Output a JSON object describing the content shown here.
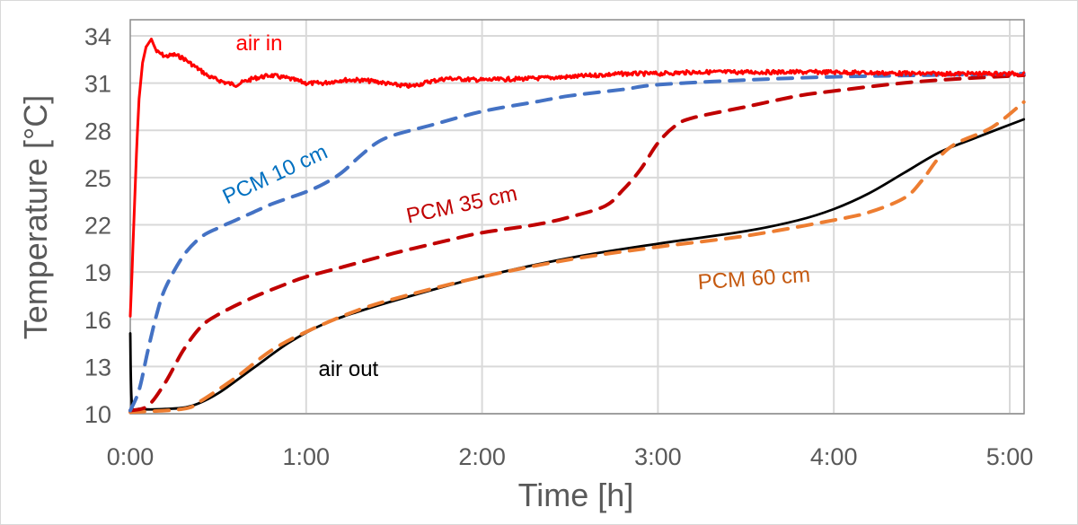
{
  "chart_data": {
    "type": "line",
    "title": "",
    "xlabel": "Time [h]",
    "ylabel": "Temperature [°C]",
    "xlim": [
      0,
      5.08
    ],
    "ylim": [
      10,
      35
    ],
    "grid": true,
    "legend": "none (inline series labels)",
    "x_ticks": [
      {
        "value": 0,
        "label": "0:00"
      },
      {
        "value": 1,
        "label": "1:00"
      },
      {
        "value": 2,
        "label": "2:00"
      },
      {
        "value": 3,
        "label": "3:00"
      },
      {
        "value": 4,
        "label": "4:00"
      },
      {
        "value": 5,
        "label": "5:00"
      }
    ],
    "y_ticks": [
      {
        "value": 10,
        "label": "10"
      },
      {
        "value": 13,
        "label": "13"
      },
      {
        "value": 16,
        "label": "16"
      },
      {
        "value": 19,
        "label": "19"
      },
      {
        "value": 22,
        "label": "22"
      },
      {
        "value": 25,
        "label": "25"
      },
      {
        "value": 28,
        "label": "28"
      },
      {
        "value": 31,
        "label": "31"
      },
      {
        "value": 34,
        "label": "34"
      }
    ],
    "series": [
      {
        "name": "air in",
        "color": "#FF0000",
        "label_color": "#FF0000",
        "style": "solid",
        "noisy": true,
        "label_at": {
          "x": 0.6,
          "y": 33.1,
          "rotation_deg": 0
        },
        "points": [
          [
            0.0,
            16.2
          ],
          [
            0.01,
            19
          ],
          [
            0.02,
            22
          ],
          [
            0.035,
            26.5
          ],
          [
            0.05,
            30
          ],
          [
            0.07,
            32.3
          ],
          [
            0.09,
            33.3
          ],
          [
            0.12,
            33.8
          ],
          [
            0.15,
            33.0
          ],
          [
            0.2,
            32.7
          ],
          [
            0.25,
            32.8
          ],
          [
            0.3,
            32.6
          ],
          [
            0.35,
            32.2
          ],
          [
            0.45,
            31.4
          ],
          [
            0.55,
            31.0
          ],
          [
            0.6,
            30.9
          ],
          [
            0.7,
            31.3
          ],
          [
            0.8,
            31.5
          ],
          [
            0.9,
            31.3
          ],
          [
            1.0,
            31.0
          ],
          [
            1.1,
            31.0
          ],
          [
            1.2,
            31.2
          ],
          [
            1.3,
            31.2
          ],
          [
            1.4,
            31.1
          ],
          [
            1.5,
            30.9
          ],
          [
            1.6,
            30.8
          ],
          [
            1.7,
            31.1
          ],
          [
            1.8,
            31.3
          ],
          [
            2.0,
            31.2
          ],
          [
            2.3,
            31.3
          ],
          [
            2.5,
            31.4
          ],
          [
            2.8,
            31.6
          ],
          [
            3.0,
            31.6
          ],
          [
            3.2,
            31.7
          ],
          [
            3.5,
            31.7
          ],
          [
            4.0,
            31.7
          ],
          [
            4.5,
            31.6
          ],
          [
            5.08,
            31.6
          ]
        ]
      },
      {
        "name": "PCM 10 cm",
        "color": "#4472C4",
        "label_color": "#0070C0",
        "style": "dashed",
        "label_at": {
          "x": 0.55,
          "y": 23.3,
          "rotation_deg": -25
        },
        "points": [
          [
            0.0,
            10.2
          ],
          [
            0.05,
            11.5
          ],
          [
            0.1,
            14.0
          ],
          [
            0.15,
            16.3
          ],
          [
            0.2,
            18.0
          ],
          [
            0.3,
            20.0
          ],
          [
            0.4,
            21.2
          ],
          [
            0.5,
            21.8
          ],
          [
            0.6,
            22.3
          ],
          [
            0.7,
            22.8
          ],
          [
            0.8,
            23.3
          ],
          [
            0.9,
            23.7
          ],
          [
            1.0,
            24.1
          ],
          [
            1.1,
            24.6
          ],
          [
            1.2,
            25.3
          ],
          [
            1.3,
            26.3
          ],
          [
            1.4,
            27.2
          ],
          [
            1.5,
            27.7
          ],
          [
            1.7,
            28.3
          ],
          [
            2.0,
            29.2
          ],
          [
            2.3,
            29.8
          ],
          [
            2.5,
            30.2
          ],
          [
            2.8,
            30.6
          ],
          [
            3.0,
            30.9
          ],
          [
            3.5,
            31.2
          ],
          [
            4.0,
            31.4
          ],
          [
            4.5,
            31.5
          ],
          [
            5.08,
            31.6
          ]
        ]
      },
      {
        "name": "PCM 35 cm",
        "color": "#C00000",
        "label_color": "#C00000",
        "style": "dashed",
        "label_at": {
          "x": 1.58,
          "y": 22.1,
          "rotation_deg": -12
        },
        "points": [
          [
            0.0,
            10.2
          ],
          [
            0.1,
            10.5
          ],
          [
            0.2,
            12.0
          ],
          [
            0.3,
            14.0
          ],
          [
            0.4,
            15.5
          ],
          [
            0.5,
            16.3
          ],
          [
            0.7,
            17.4
          ],
          [
            0.9,
            18.3
          ],
          [
            1.0,
            18.7
          ],
          [
            1.2,
            19.3
          ],
          [
            1.5,
            20.2
          ],
          [
            1.8,
            21.0
          ],
          [
            2.0,
            21.5
          ],
          [
            2.3,
            22.0
          ],
          [
            2.5,
            22.5
          ],
          [
            2.7,
            23.2
          ],
          [
            2.8,
            24.2
          ],
          [
            2.9,
            25.5
          ],
          [
            3.0,
            27.2
          ],
          [
            3.1,
            28.3
          ],
          [
            3.2,
            28.8
          ],
          [
            3.5,
            29.5
          ],
          [
            3.8,
            30.2
          ],
          [
            4.0,
            30.5
          ],
          [
            4.3,
            30.9
          ],
          [
            4.6,
            31.2
          ],
          [
            5.08,
            31.5
          ]
        ]
      },
      {
        "name": "PCM 60 cm",
        "color": "#ED7D31",
        "label_color": "#C55A11",
        "style": "dashed",
        "label_at": {
          "x": 3.23,
          "y": 17.9,
          "rotation_deg": -4
        },
        "points": [
          [
            0.0,
            10.1
          ],
          [
            0.3,
            10.3
          ],
          [
            0.4,
            10.8
          ],
          [
            0.6,
            12.3
          ],
          [
            0.8,
            14.0
          ],
          [
            1.0,
            15.2
          ],
          [
            1.3,
            16.6
          ],
          [
            1.6,
            17.6
          ],
          [
            2.0,
            18.7
          ],
          [
            2.5,
            19.8
          ],
          [
            3.0,
            20.6
          ],
          [
            3.5,
            21.3
          ],
          [
            4.0,
            22.3
          ],
          [
            4.2,
            22.8
          ],
          [
            4.4,
            23.7
          ],
          [
            4.5,
            24.8
          ],
          [
            4.6,
            26.3
          ],
          [
            4.7,
            27.2
          ],
          [
            4.9,
            28.2
          ],
          [
            5.08,
            29.8
          ]
        ]
      },
      {
        "name": "air out",
        "color": "#000000",
        "label_color": "#000000",
        "style": "solid",
        "label_at": {
          "x": 1.07,
          "y": 12.4,
          "rotation_deg": 0
        },
        "points": [
          [
            0.0,
            15.1
          ],
          [
            0.01,
            10.5
          ],
          [
            0.05,
            10.3
          ],
          [
            0.2,
            10.3
          ],
          [
            0.35,
            10.5
          ],
          [
            0.5,
            11.3
          ],
          [
            0.7,
            12.9
          ],
          [
            0.9,
            14.5
          ],
          [
            1.1,
            15.7
          ],
          [
            1.3,
            16.5
          ],
          [
            1.6,
            17.5
          ],
          [
            2.0,
            18.7
          ],
          [
            2.5,
            19.9
          ],
          [
            3.0,
            20.8
          ],
          [
            3.5,
            21.6
          ],
          [
            3.8,
            22.3
          ],
          [
            4.0,
            23.0
          ],
          [
            4.2,
            24.0
          ],
          [
            4.4,
            25.3
          ],
          [
            4.6,
            26.6
          ],
          [
            4.8,
            27.5
          ],
          [
            5.08,
            28.7
          ]
        ]
      }
    ]
  }
}
